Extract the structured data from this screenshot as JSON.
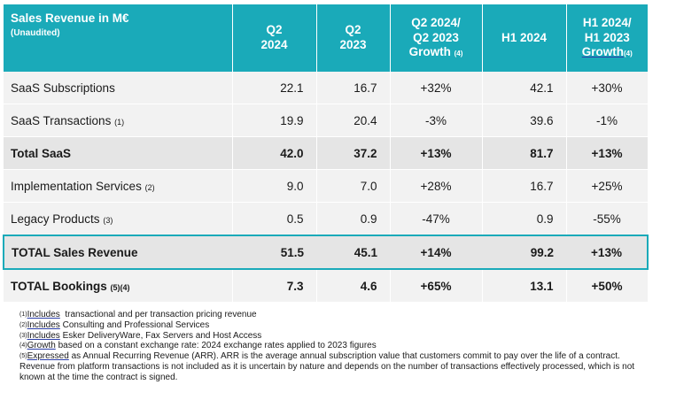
{
  "header": {
    "title": "Sales Revenue in M€",
    "subtitle": "(Unaudited)",
    "columns": [
      {
        "l1": "Q2",
        "l2": "2024",
        "l3": "",
        "sup": ""
      },
      {
        "l1": "Q2",
        "l2": "2023",
        "l3": "",
        "sup": ""
      },
      {
        "l1": "Q2 2024/",
        "l2": "Q2 2023",
        "l3": "Growth",
        "sup": "(4)"
      },
      {
        "l1": "H1 2024",
        "l2": "",
        "l3": "",
        "sup": ""
      },
      {
        "l1": "H1 2024/",
        "l2": "H1 2023",
        "l3": "Growth",
        "sup": "(4)"
      }
    ]
  },
  "rows": [
    {
      "label": "SaaS Subscriptions",
      "sup": "",
      "q2_2024": "22.1",
      "q2_2023": "16.7",
      "q2_growth": "+32%",
      "h1_2024": "42.1",
      "h1_growth": "+30%"
    },
    {
      "label": "SaaS Transactions",
      "sup": "(1)",
      "q2_2024": "19.9",
      "q2_2023": "20.4",
      "q2_growth": "-3%",
      "h1_2024": "39.6",
      "h1_growth": "-1%"
    },
    {
      "label": "Total SaaS",
      "sup": "",
      "q2_2024": "42.0",
      "q2_2023": "37.2",
      "q2_growth": "+13%",
      "h1_2024": "81.7",
      "h1_growth": "+13%"
    },
    {
      "label": "Implementation Services",
      "sup": "(2)",
      "q2_2024": "9.0",
      "q2_2023": "7.0",
      "q2_growth": "+28%",
      "h1_2024": "16.7",
      "h1_growth": "+25%"
    },
    {
      "label": "Legacy Products",
      "sup": "(3)",
      "q2_2024": "0.5",
      "q2_2023": "0.9",
      "q2_growth": "-47%",
      "h1_2024": "0.9",
      "h1_growth": "-55%"
    },
    {
      "label": "TOTAL Sales Revenue",
      "sup": "",
      "q2_2024": "51.5",
      "q2_2023": "45.1",
      "q2_growth": "+14%",
      "h1_2024": "99.2",
      "h1_growth": "+13%"
    },
    {
      "label": "TOTAL Bookings",
      "sup": "(5)(4)",
      "q2_2024": "7.3",
      "q2_2023": "4.6",
      "q2_growth": "+65%",
      "h1_2024": "13.1",
      "h1_growth": "+50%"
    }
  ],
  "footnotes": [
    {
      "num": "(1)",
      "key": "Includes",
      "text": "  transactional and per transaction pricing revenue"
    },
    {
      "num": "(2)",
      "key": "Includes",
      "text": " Consulting and Professional Services"
    },
    {
      "num": "(3)",
      "key": "Includes",
      "text": " Esker DeliveryWare, Fax Servers and Host Access"
    },
    {
      "num": "(4)",
      "key": "Growth",
      "text": " based on a constant exchange rate: 2024 exchange rates applied to 2023 figures"
    },
    {
      "num": "(5)",
      "key": "Expressed",
      "text": " as Annual Recurring Revenue (ARR). ARR is the average annual subscription value that customers commit to pay over the life of a contract. Revenue from platform transactions is not included as it is uncertain by nature and depends on the number of transactions effectively processed, which is not known at the time the contract is signed."
    }
  ]
}
